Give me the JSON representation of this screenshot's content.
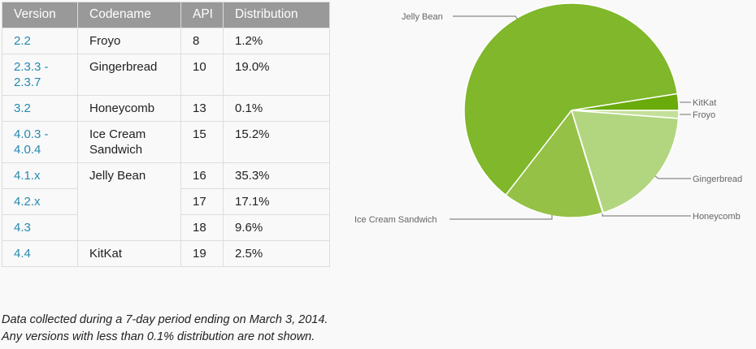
{
  "table": {
    "headers": [
      "Version",
      "Codename",
      "API",
      "Distribution"
    ],
    "rows": [
      {
        "version": "2.2",
        "codename": "Froyo",
        "api": "8",
        "distribution": "1.2%"
      },
      {
        "version": "2.3.3 - 2.3.7",
        "codename": "Gingerbread",
        "api": "10",
        "distribution": "19.0%"
      },
      {
        "version": "3.2",
        "codename": "Honeycomb",
        "api": "13",
        "distribution": "0.1%"
      },
      {
        "version": "4.0.3 - 4.0.4",
        "codename": "Ice Cream Sandwich",
        "api": "15",
        "distribution": "15.2%"
      },
      {
        "version": "4.1.x",
        "codename": "Jelly Bean",
        "api": "16",
        "distribution": "35.3%"
      },
      {
        "version": "4.2.x",
        "codename": "",
        "api": "17",
        "distribution": "17.1%"
      },
      {
        "version": "4.3",
        "codename": "",
        "api": "18",
        "distribution": "9.6%"
      },
      {
        "version": "4.4",
        "codename": "KitKat",
        "api": "19",
        "distribution": "2.5%"
      }
    ]
  },
  "note": {
    "line1": "Data collected during a 7-day period ending on March 3, 2014.",
    "line2": "Any versions with less than 0.1% distribution are not shown."
  },
  "chart_data": {
    "type": "pie",
    "title": "",
    "categories": [
      "KitKat",
      "Froyo",
      "Gingerbread",
      "Honeycomb",
      "Ice Cream Sandwich",
      "Jelly Bean"
    ],
    "values": [
      2.5,
      1.2,
      19.0,
      0.1,
      15.2,
      62.0
    ],
    "colors": [
      "#6aab0c",
      "#c3e09a",
      "#b2d67f",
      "#a9d16e",
      "#94c146",
      "#80b72b"
    ],
    "legend": "labels with leader lines"
  },
  "labels": {
    "jelly_bean": "Jelly Bean",
    "kitkat": "KitKat",
    "froyo": "Froyo",
    "gingerbread": "Gingerbread",
    "ice_cream_sandwich": "Ice Cream Sandwich",
    "honeycomb": "Honeycomb"
  }
}
